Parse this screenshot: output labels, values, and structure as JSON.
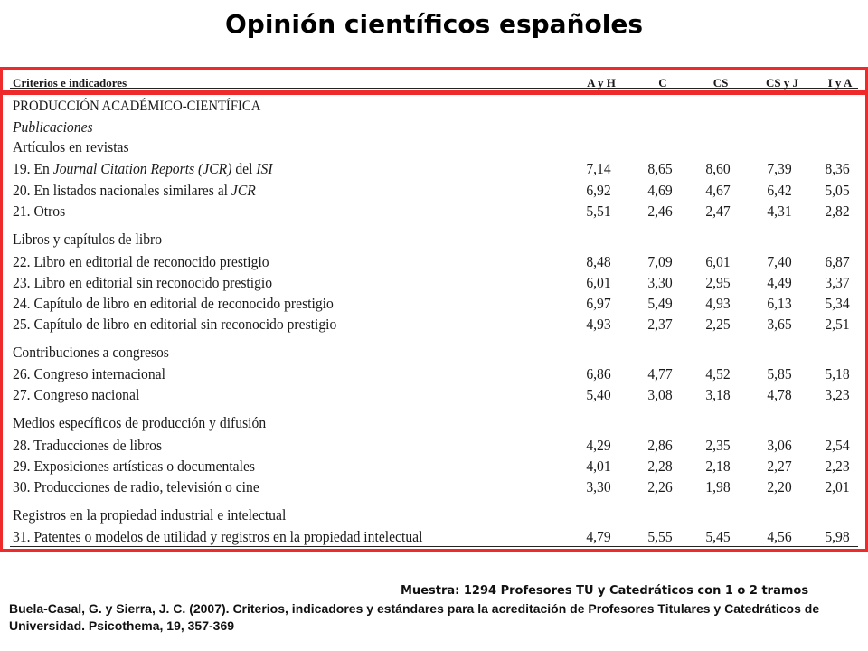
{
  "title": "Opinión científicos españoles",
  "table": {
    "header_label": "Criterios e indicadores",
    "columns": [
      "A y H",
      "C",
      "CS",
      "CS y J",
      "I y A"
    ],
    "section_title": "PRODUCCIÓN ACADÉMICO-CIENTÍFICA",
    "subsection": "Publicaciones",
    "rows": [
      {
        "label": "Artículos en revistas",
        "values": []
      },
      {
        "label_parts": [
          "19. En ",
          "Journal Citation Reports (JCR)",
          " del ",
          "ISI"
        ],
        "values": [
          "7,14",
          "8,65",
          "8,60",
          "7,39",
          "8,36"
        ]
      },
      {
        "label_parts": [
          "20. En listados nacionales similares al ",
          "JCR"
        ],
        "values": [
          "6,92",
          "4,69",
          "4,67",
          "6,42",
          "5,05"
        ]
      },
      {
        "label": "21. Otros",
        "values": [
          "5,51",
          "2,46",
          "2,47",
          "4,31",
          "2,82"
        ]
      },
      {
        "label": "Libros y capítulos de libro",
        "values": []
      },
      {
        "label": "22. Libro en editorial de reconocido prestigio",
        "values": [
          "8,48",
          "7,09",
          "6,01",
          "7,40",
          "6,87"
        ]
      },
      {
        "label": "23. Libro en editorial sin reconocido prestigio",
        "values": [
          "6,01",
          "3,30",
          "2,95",
          "4,49",
          "3,37"
        ]
      },
      {
        "label": "24. Capítulo de libro en editorial de reconocido prestigio",
        "values": [
          "6,97",
          "5,49",
          "4,93",
          "6,13",
          "5,34"
        ]
      },
      {
        "label": "25. Capítulo de libro en editorial sin reconocido prestigio",
        "values": [
          "4,93",
          "2,37",
          "2,25",
          "3,65",
          "2,51"
        ]
      },
      {
        "label": "Contribuciones a congresos",
        "values": []
      },
      {
        "label": "26. Congreso internacional",
        "values": [
          "6,86",
          "4,77",
          "4,52",
          "5,85",
          "5,18"
        ]
      },
      {
        "label": "27. Congreso nacional",
        "values": [
          "5,40",
          "3,08",
          "3,18",
          "4,78",
          "3,23"
        ]
      },
      {
        "label": "Medios específicos de producción y difusión",
        "values": []
      },
      {
        "label": "28. Traducciones de libros",
        "values": [
          "4,29",
          "2,86",
          "2,35",
          "3,06",
          "2,54"
        ]
      },
      {
        "label": "29. Exposiciones artísticas o documentales",
        "values": [
          "4,01",
          "2,28",
          "2,18",
          "2,27",
          "2,23"
        ]
      },
      {
        "label": "30. Producciones de radio, televisión o cine",
        "values": [
          "3,30",
          "2,26",
          "1,98",
          "2,20",
          "2,01"
        ]
      },
      {
        "label": "Registros en la propiedad industrial e intelectual",
        "values": []
      },
      {
        "label": "31. Patentes o modelos de utilidad y registros en la propiedad intelectual",
        "values": [
          "4,79",
          "5,55",
          "5,45",
          "4,56",
          "5,98"
        ]
      }
    ]
  },
  "footer": {
    "sample": "Muestra: 1294 Profesores TU y Catedráticos  con 1 o 2 tramos",
    "citation": "Buela-Casal, G. y Sierra, J. C. (2007). Criterios, indicadores y estándares para la acreditación de Profesores Titulares y Catedráticos de Universidad. Psicothema, 19, 357-369"
  },
  "colors": {
    "frame": "#ee2a2a"
  }
}
